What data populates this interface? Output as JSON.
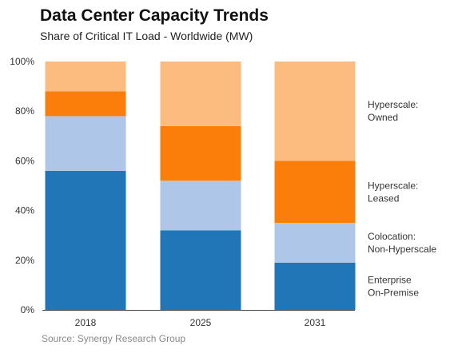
{
  "chart_data": {
    "type": "bar",
    "stacked": true,
    "title": "Data Center Capacity Trends",
    "subtitle": "Share of Critical IT Load - Worldwide (MW)",
    "source": "Source: Synergy Research Group",
    "categories": [
      "2018",
      "2025",
      "2031"
    ],
    "yticks": [
      "0%",
      "20%",
      "40%",
      "60%",
      "80%",
      "100%"
    ],
    "ylim": [
      0,
      100
    ],
    "y_unit": "percent",
    "series": [
      {
        "name": "Enterprise\nOn-Premise",
        "color": "#2176b8",
        "values": [
          56,
          32,
          19
        ]
      },
      {
        "name": "Colocation:\nNon-Hyperscale",
        "color": "#aec7e8",
        "values": [
          22,
          20,
          16
        ]
      },
      {
        "name": "Hyperscale:\nLeased",
        "color": "#fb7e0a",
        "values": [
          10,
          22,
          25
        ]
      },
      {
        "name": "Hyperscale:\nOwned",
        "color": "#fdbc7f",
        "values": [
          12,
          26,
          40
        ]
      }
    ],
    "legend_position": "right",
    "gridlines": false
  }
}
